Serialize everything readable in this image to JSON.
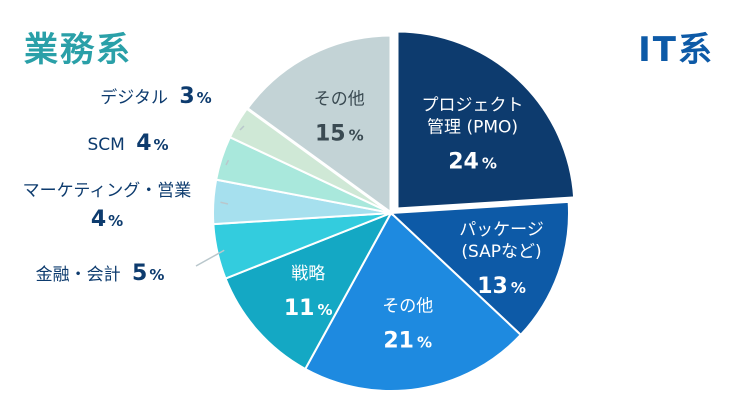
{
  "groups": {
    "left": "業務系",
    "right": "IT系"
  },
  "colors": {
    "left_title": "#2aa0a8",
    "right_title": "#0d5aa7",
    "leader": "#b9c7cc"
  },
  "chart_data": {
    "type": "pie",
    "unit": "%",
    "slices": [
      {
        "name": "プロジェクト管理 (PMO)",
        "value": 24,
        "color": "#0d3b6e",
        "lines": [
          "プロジェクト",
          "管理 (PMO)"
        ],
        "text": "#ffffff"
      },
      {
        "name": "パッケージ(SAPなど)",
        "value": 13,
        "color": "#0d5aa7",
        "lines": [
          "パッケージ",
          "(SAPなど)"
        ],
        "text": "#ffffff"
      },
      {
        "name": "その他",
        "value": 21,
        "color": "#1e8ae0",
        "lines": [
          "その他"
        ],
        "text": "#ffffff"
      },
      {
        "name": "戦略",
        "value": 11,
        "color": "#14a8c4",
        "lines": [
          "戦略"
        ],
        "text": "#ffffff"
      },
      {
        "name": "金融・会計",
        "value": 5,
        "color": "#33ccde",
        "lines": [
          "金融・会計"
        ],
        "text": "#0d3b6e"
      },
      {
        "name": "マーケティング・営業",
        "value": 4,
        "color": "#a6e0ee",
        "lines": [
          "マーケティング・営業"
        ],
        "text": "#0d3b6e"
      },
      {
        "name": "SCM",
        "value": 4,
        "color": "#a9e8dc",
        "lines": [
          "SCM"
        ],
        "text": "#0d3b6e"
      },
      {
        "name": "デジタル",
        "value": 3,
        "color": "#cfe8d6",
        "lines": [
          "デジタル"
        ],
        "text": "#0d3b6e"
      },
      {
        "name": "その他",
        "value": 15,
        "color": "#c3d3d6",
        "lines": [
          "その他"
        ],
        "text": "#3a4a52"
      }
    ]
  }
}
